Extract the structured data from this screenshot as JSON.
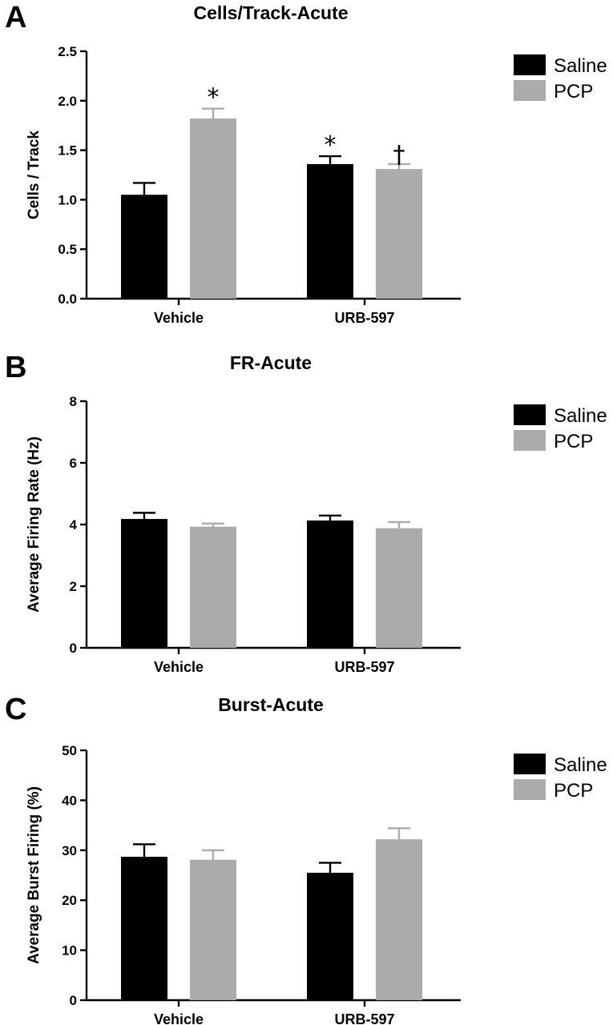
{
  "colors": {
    "saline": "#000000",
    "pcp": "#ababab"
  },
  "chart_data": [
    {
      "panel_label": "A",
      "type": "bar",
      "title": "Cells/Track-Acute",
      "ylabel": "Cells / Track",
      "xlabel": "",
      "ylim": [
        0,
        2.5
      ],
      "yticks": [
        "0.0",
        "0.5",
        "1.0",
        "1.5",
        "2.0",
        "2.5"
      ],
      "categories": [
        "Vehicle",
        "URB-597"
      ],
      "series": [
        {
          "name": "Saline",
          "values": [
            1.05,
            1.36
          ],
          "errors": [
            0.12,
            0.08
          ],
          "markers": [
            "",
            "*"
          ]
        },
        {
          "name": "PCP",
          "values": [
            1.82,
            1.31
          ],
          "errors": [
            0.1,
            0.05
          ],
          "markers": [
            "*",
            "†"
          ]
        }
      ],
      "legend_position": "top-right"
    },
    {
      "panel_label": "B",
      "type": "bar",
      "title": "FR-Acute",
      "ylabel": "Average Firing Rate (Hz)",
      "xlabel": "",
      "ylim": [
        0,
        8
      ],
      "yticks": [
        "0",
        "2",
        "4",
        "6",
        "8"
      ],
      "categories": [
        "Vehicle",
        "URB-597"
      ],
      "series": [
        {
          "name": "Saline",
          "values": [
            4.18,
            4.13
          ],
          "errors": [
            0.2,
            0.16
          ],
          "markers": [
            "",
            ""
          ]
        },
        {
          "name": "PCP",
          "values": [
            3.93,
            3.88
          ],
          "errors": [
            0.1,
            0.2
          ],
          "markers": [
            "",
            ""
          ]
        }
      ],
      "legend_position": "top-right"
    },
    {
      "panel_label": "C",
      "type": "bar",
      "title": "Burst-Acute",
      "ylabel": "Average Burst Firing (%)",
      "xlabel": "",
      "ylim": [
        0,
        50
      ],
      "yticks": [
        "0",
        "10",
        "20",
        "30",
        "40",
        "50"
      ],
      "categories": [
        "Vehicle",
        "URB-597"
      ],
      "series": [
        {
          "name": "Saline",
          "values": [
            28.7,
            25.5
          ],
          "errors": [
            2.5,
            2.0
          ],
          "markers": [
            "",
            ""
          ]
        },
        {
          "name": "PCP",
          "values": [
            28.1,
            32.2
          ],
          "errors": [
            1.9,
            2.2
          ],
          "markers": [
            "",
            ""
          ]
        }
      ],
      "legend_position": "top-right"
    }
  ]
}
